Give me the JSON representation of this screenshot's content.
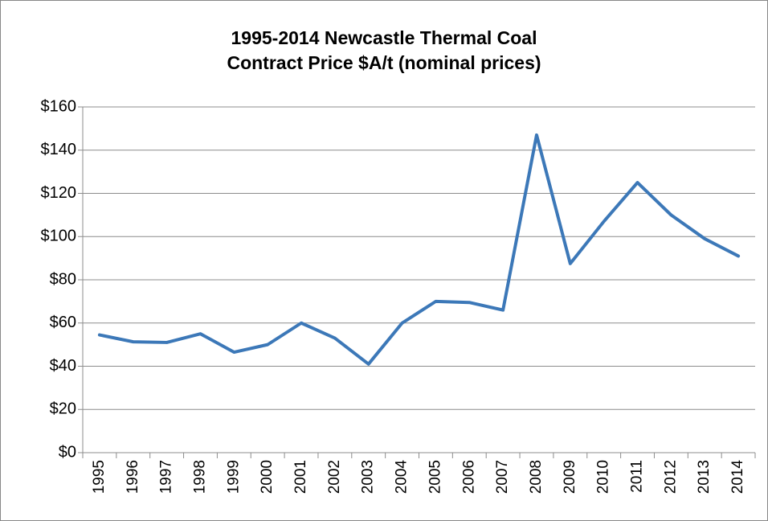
{
  "chart_data": {
    "type": "line",
    "title": [
      "1995-2014 Newcastle Thermal Coal",
      "Contract Price $A/t (nominal prices)"
    ],
    "categories": [
      "1995",
      "1996",
      "1997",
      "1998",
      "1999",
      "2000",
      "2001",
      "2002",
      "2003",
      "2004",
      "2005",
      "2006",
      "2007",
      "2008",
      "2009",
      "2010",
      "2011",
      "2012",
      "2013",
      "2014"
    ],
    "values": [
      54.5,
      51.3,
      51,
      55,
      46.5,
      50,
      60,
      53,
      41,
      60,
      70,
      69.5,
      66,
      147,
      87.5,
      107,
      125,
      110,
      99,
      91
    ],
    "color": "#3c78b8",
    "ylim": [
      0,
      160
    ],
    "yticks": [
      {
        "value": 0,
        "label": "$0"
      },
      {
        "value": 20,
        "label": "$20"
      },
      {
        "value": 40,
        "label": "$40"
      },
      {
        "value": 60,
        "label": "$60"
      },
      {
        "value": 80,
        "label": "$80"
      },
      {
        "value": 100,
        "label": "$100"
      },
      {
        "value": 120,
        "label": "$120"
      },
      {
        "value": 140,
        "label": "$140"
      },
      {
        "value": 160,
        "label": "$160"
      }
    ],
    "grid": true
  }
}
